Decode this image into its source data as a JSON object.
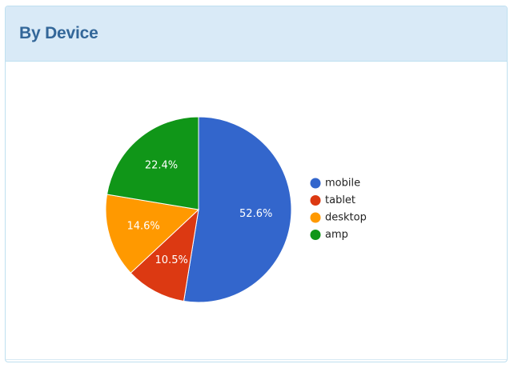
{
  "panel": {
    "title": "By Device"
  },
  "chart_data": {
    "type": "pie",
    "title": "",
    "slices": [
      {
        "label": "mobile",
        "value": 52.6,
        "display": "52.6%",
        "color": "#3366cc"
      },
      {
        "label": "tablet",
        "value": 10.5,
        "display": "10.5%",
        "color": "#dc3912"
      },
      {
        "label": "desktop",
        "value": 14.6,
        "display": "14.6%",
        "color": "#ff9900"
      },
      {
        "label": "amp",
        "value": 22.4,
        "display": "22.4%",
        "color": "#109618"
      }
    ],
    "start_angle_deg": 0,
    "direction": "clockwise",
    "legend_position": "right"
  }
}
